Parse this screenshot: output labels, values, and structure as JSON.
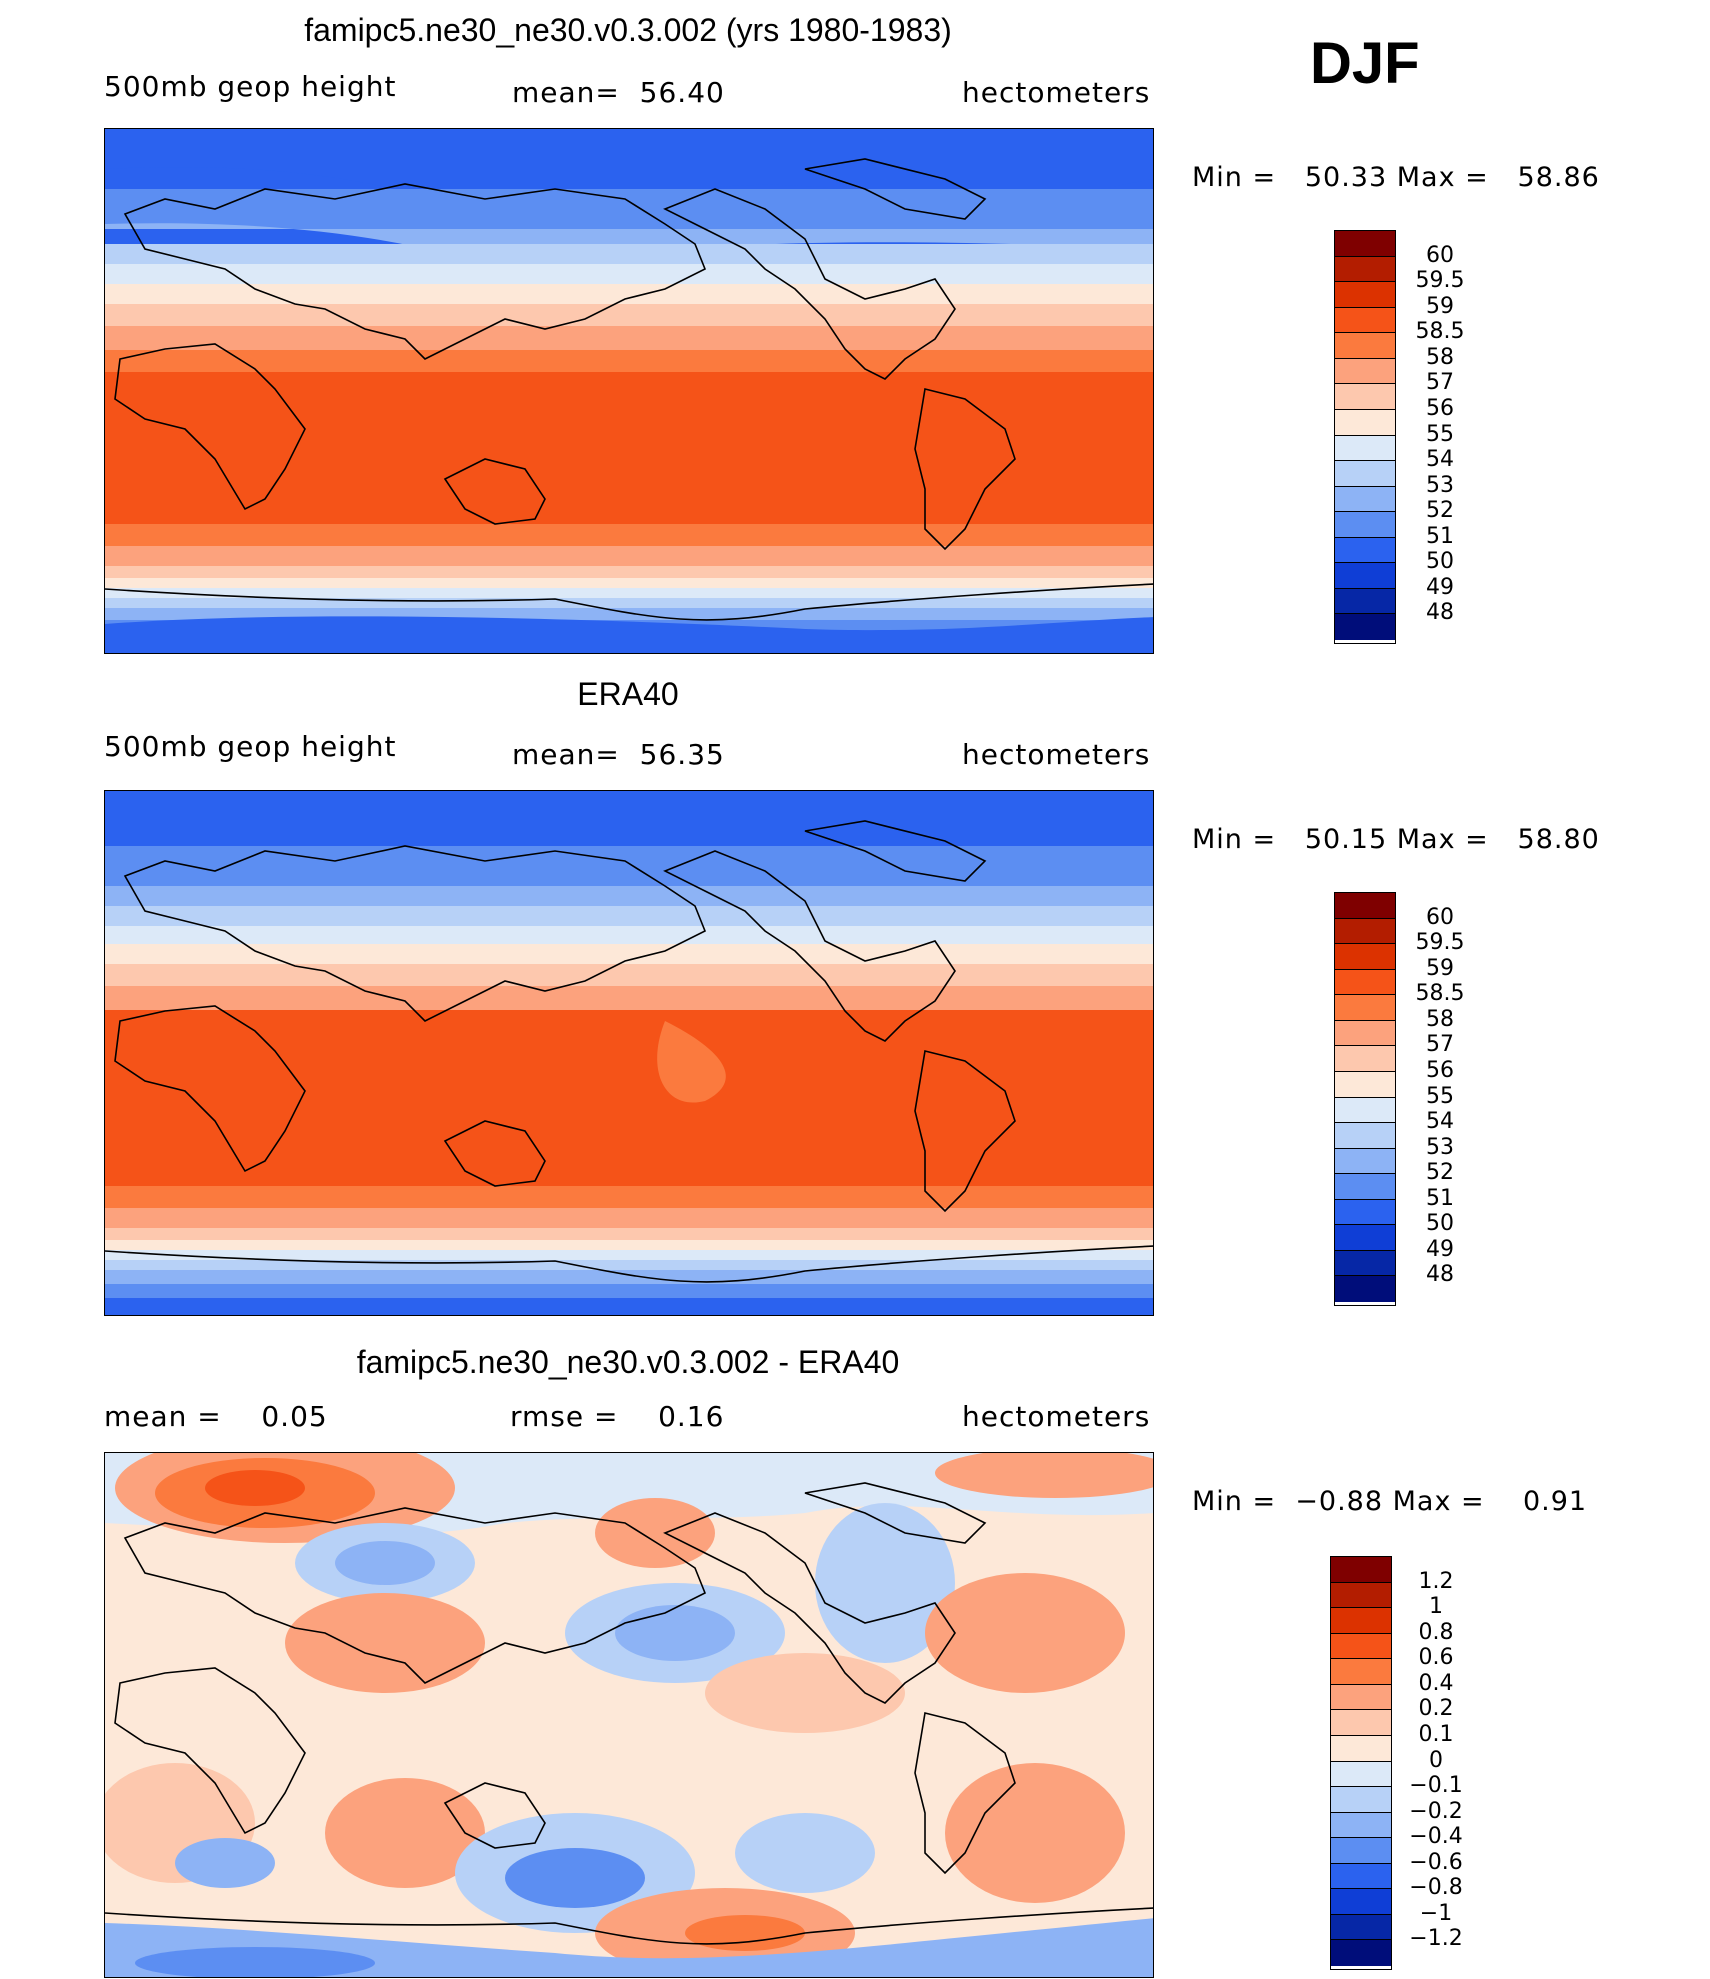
{
  "season": "DJF",
  "panels": [
    {
      "id": "model",
      "title": "famipc5.ne30_ne30.v0.3.002 (yrs 1980-1983)",
      "left_label": "500mb geop height",
      "center_label": "mean=  56.40",
      "right_label": "hectometers",
      "minmax": "Min =   50.33 Max =   58.86",
      "min": 50.33,
      "max": 58.86,
      "colorbar_labels": [
        "60",
        "59.5",
        "59",
        "58.5",
        "58",
        "57",
        "56",
        "55",
        "54",
        "53",
        "52",
        "51",
        "50",
        "49",
        "48"
      ],
      "colorbar_colors": [
        "#7f0000",
        "#b31d00",
        "#dc3200",
        "#f55318",
        "#fb7a3e",
        "#fca27d",
        "#fdc8ae",
        "#fde8d8",
        "#dce9f8",
        "#b7d1f7",
        "#8db3f5",
        "#5c8ef2",
        "#2b62ef",
        "#0f3ed6",
        "#0627a6",
        "#000d7a"
      ]
    },
    {
      "id": "obs",
      "title": "ERA40",
      "left_label": "500mb geop height",
      "center_label": "mean=  56.35",
      "right_label": "hectometers",
      "minmax": "Min =   50.15 Max =   58.80",
      "min": 50.15,
      "max": 58.8,
      "colorbar_labels": [
        "60",
        "59.5",
        "59",
        "58.5",
        "58",
        "57",
        "56",
        "55",
        "54",
        "53",
        "52",
        "51",
        "50",
        "49",
        "48"
      ],
      "colorbar_colors": [
        "#7f0000",
        "#b31d00",
        "#dc3200",
        "#f55318",
        "#fb7a3e",
        "#fca27d",
        "#fdc8ae",
        "#fde8d8",
        "#dce9f8",
        "#b7d1f7",
        "#8db3f5",
        "#5c8ef2",
        "#2b62ef",
        "#0f3ed6",
        "#0627a6",
        "#000d7a"
      ]
    },
    {
      "id": "diff",
      "title": "famipc5.ne30_ne30.v0.3.002 - ERA40",
      "left_label": "mean =    0.05",
      "center_label": "rmse =    0.16",
      "right_label": "hectometers",
      "minmax": "Min =  −0.88 Max =    0.91",
      "min": -0.88,
      "max": 0.91,
      "colorbar_labels": [
        "1.2",
        "1",
        "0.8",
        "0.6",
        "0.4",
        "0.2",
        "0.1",
        "0",
        "−0.1",
        "−0.2",
        "−0.4",
        "−0.6",
        "−0.8",
        "−1",
        "−1.2"
      ],
      "colorbar_colors": [
        "#7f0000",
        "#b31d00",
        "#dc3200",
        "#f55318",
        "#fb7a3e",
        "#fca27d",
        "#fdc8ae",
        "#fde8d8",
        "#dce9f8",
        "#b7d1f7",
        "#8db3f5",
        "#5c8ef2",
        "#2b62ef",
        "#0f3ed6",
        "#0627a6",
        "#000d7a"
      ]
    }
  ]
}
